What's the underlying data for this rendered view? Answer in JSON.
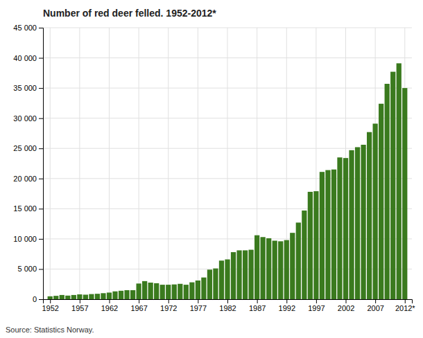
{
  "chart_data": {
    "type": "bar",
    "title": "Number of red deer felled. 1952-2012*",
    "annotations": [
      "Source: Statistics Norway."
    ],
    "color": "#3a7a1e",
    "grid": true,
    "x": [
      1952,
      1953,
      1954,
      1955,
      1956,
      1957,
      1958,
      1959,
      1960,
      1961,
      1962,
      1963,
      1964,
      1965,
      1966,
      1967,
      1968,
      1969,
      1970,
      1971,
      1972,
      1973,
      1974,
      1975,
      1976,
      1977,
      1978,
      1979,
      1980,
      1981,
      1982,
      1983,
      1984,
      1985,
      1986,
      1987,
      1988,
      1989,
      1990,
      1991,
      1992,
      1993,
      1994,
      1995,
      1996,
      1997,
      1998,
      1999,
      2000,
      2001,
      2002,
      2003,
      2004,
      2005,
      2006,
      2007,
      2008,
      2009,
      2010,
      2011,
      2012
    ],
    "values": [
      480,
      560,
      700,
      600,
      700,
      800,
      750,
      850,
      900,
      1000,
      1100,
      1300,
      1400,
      1500,
      1500,
      2600,
      3000,
      2750,
      2650,
      2400,
      2400,
      2450,
      2550,
      2400,
      2800,
      3100,
      3600,
      4900,
      5100,
      6400,
      6600,
      7800,
      8100,
      8100,
      8200,
      10600,
      10300,
      10100,
      9700,
      9600,
      9800,
      11000,
      12700,
      14700,
      17800,
      17900,
      21100,
      21400,
      21500,
      23500,
      23400,
      24700,
      25200,
      25600,
      27700,
      29100,
      32400,
      35700,
      37700,
      39100,
      35000
    ],
    "xlim": [
      1950.8,
      2013.2
    ],
    "xticks": [
      1952,
      1957,
      1962,
      1967,
      1972,
      1977,
      1982,
      1987,
      1992,
      1997,
      2002,
      2007,
      {
        "value": 2012,
        "label": "2012*"
      }
    ],
    "ylim": [
      0,
      45000
    ],
    "yticks": [
      0,
      {
        "value": 5000,
        "label": "5 000"
      },
      {
        "value": 10000,
        "label": "10 000"
      },
      {
        "value": 15000,
        "label": "15 000"
      },
      {
        "value": 20000,
        "label": "20 000"
      },
      {
        "value": 25000,
        "label": "25 000"
      },
      {
        "value": 30000,
        "label": "30 000"
      },
      {
        "value": 35000,
        "label": "35 000"
      },
      {
        "value": 40000,
        "label": "40 000"
      },
      {
        "value": 45000,
        "label": "45 000"
      }
    ]
  }
}
